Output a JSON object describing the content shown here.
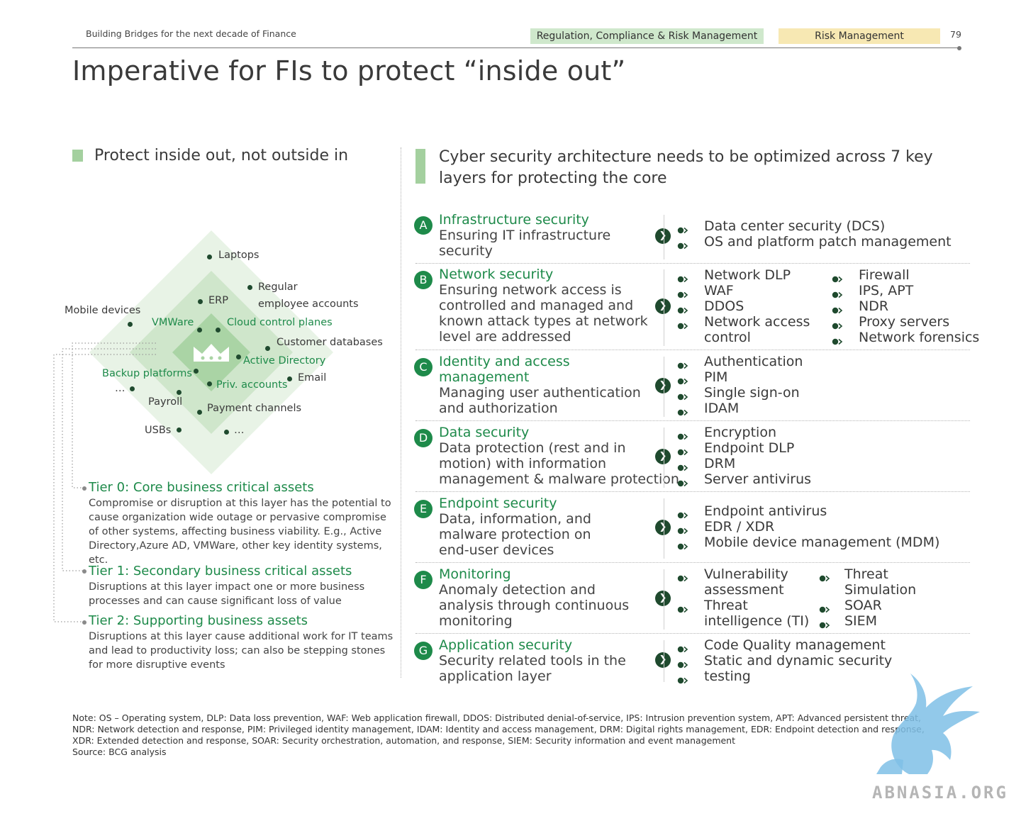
{
  "header": {
    "doc_title": "Building Bridges for the next decade of Finance",
    "tag_primary": "Regulation, Compliance & Risk Management",
    "tag_secondary": "Risk Management",
    "page_number": "79",
    "colors": {
      "tag_primary_bg": "#cfe8cc",
      "tag_secondary_bg": "#f7e8b3"
    }
  },
  "title": "Imperative for FIs to protect “inside out”",
  "left": {
    "heading": "Protect inside out, not outside in",
    "diamond": {
      "crown_icon": "crown-icon",
      "colors": {
        "outer": "#e8f3e6",
        "middle": "#cfe6cb",
        "inner": "#aad4a5"
      },
      "labels": {
        "laptops": "Laptops",
        "regular": "Regular",
        "employee_accounts": "employee accounts",
        "erp": "ERP",
        "mobile_devices": "Mobile devices",
        "vmware": "VMWare",
        "cloud_control_planes": "Cloud control planes",
        "customer_databases": "Customer databases",
        "active_directory": "Active Directory",
        "backup_platforms": "Backup platforms",
        "email": "Email",
        "priv_accounts": "Priv. accounts",
        "ellipsis_left": "…",
        "payroll": "Payroll",
        "payment_channels": "Payment channels",
        "usbs": "USBs",
        "ellipsis_bottom": "…"
      }
    },
    "tiers": [
      {
        "title": "Tier 0: Core business critical assets",
        "lines": [
          "Compromise or disruption at this layer has the potential to",
          "cause organization wide outage or pervasive compromise",
          "of other systems, affecting business viability. E.g., Active",
          "Directory,Azure AD, VMWare, other key identity systems, etc."
        ]
      },
      {
        "title": "Tier 1: Secondary business critical assets",
        "lines": [
          "Disruptions at this layer impact one or more business",
          "processes and can cause significant loss of value"
        ]
      },
      {
        "title": "Tier 2: Supporting business assets",
        "lines": [
          "Disruptions at this layer cause additional work for IT teams",
          "and lead to productivity loss; can also be stepping stones",
          "for more disruptive events"
        ]
      }
    ]
  },
  "right": {
    "heading_line1": "Cyber security architecture needs to be optimized across 7 key",
    "heading_line2": "layers for protecting the core",
    "layers": [
      {
        "letter": "A",
        "title": [
          "Infrastructure security"
        ],
        "desc": [
          "Ensuring IT infrastructure",
          "security"
        ],
        "col1": [
          "Data center security (DCS)",
          "OS and platform patch management"
        ],
        "col2": []
      },
      {
        "letter": "B",
        "title": [
          "Network security"
        ],
        "desc": [
          "Ensuring network access is",
          "controlled and managed and",
          "known attack types at network",
          "level are addressed"
        ],
        "col1": [
          "Network DLP",
          "WAF",
          "DDOS",
          "Network access",
          "control"
        ],
        "col2": [
          "Firewall",
          "IPS, APT",
          "NDR",
          "Proxy servers",
          "Network forensics"
        ]
      },
      {
        "letter": "C",
        "title": [
          "Identity and access",
          "management"
        ],
        "desc": [
          "Managing user authentication",
          "and authorization"
        ],
        "col1": [
          "Authentication",
          "PIM",
          "Single sign-on",
          "IDAM"
        ],
        "col2": []
      },
      {
        "letter": "D",
        "title": [
          "Data security"
        ],
        "desc": [
          "Data protection (rest and in",
          "motion) with information",
          "management & malware protection"
        ],
        "col1": [
          "Encryption",
          "Endpoint DLP",
          "DRM",
          "Server antivirus"
        ],
        "col2": []
      },
      {
        "letter": "E",
        "title": [
          "Endpoint security"
        ],
        "desc": [
          "Data, information, and",
          "malware protection on",
          "end-user devices"
        ],
        "col1": [
          "Endpoint antivirus",
          "EDR / XDR",
          "Mobile device management (MDM)"
        ],
        "col2": []
      },
      {
        "letter": "F",
        "title": [
          "Monitoring"
        ],
        "desc": [
          "Anomaly detection and",
          "analysis through continuous",
          "monitoring"
        ],
        "col1": [
          "Vulnerability",
          "assessment",
          "Threat",
          "intelligence (TI)"
        ],
        "col2": [
          "Threat",
          "Simulation",
          "SOAR",
          "SIEM"
        ]
      },
      {
        "letter": "G",
        "title": [
          "Application security"
        ],
        "desc": [
          "Security related tools in the",
          "application layer"
        ],
        "col1": [
          "Code Quality management",
          "Static and dynamic security",
          "testing"
        ],
        "col2": []
      }
    ]
  },
  "notes": [
    "Note: OS – Operating system, DLP: Data loss prevention, WAF: Web application firewall, DDOS: Distributed denial-of-service, IPS: Intrusion prevention system, APT: Advanced persistent threat,",
    "NDR: Network detection and response, PIM: Privileged identity management, IDAM: Identity and access management, DRM: Digital rights management, EDR: Endpoint detection and response,",
    "XDR: Extended detection and response, SOAR: Security orchestration, automation, and response, SIEM: Security information and event management",
    "Source: BCG analysis"
  ],
  "watermark": {
    "text": "ABNASIA.ORG",
    "icon": "griffin-logo-icon",
    "color": "#7fbfe6"
  }
}
